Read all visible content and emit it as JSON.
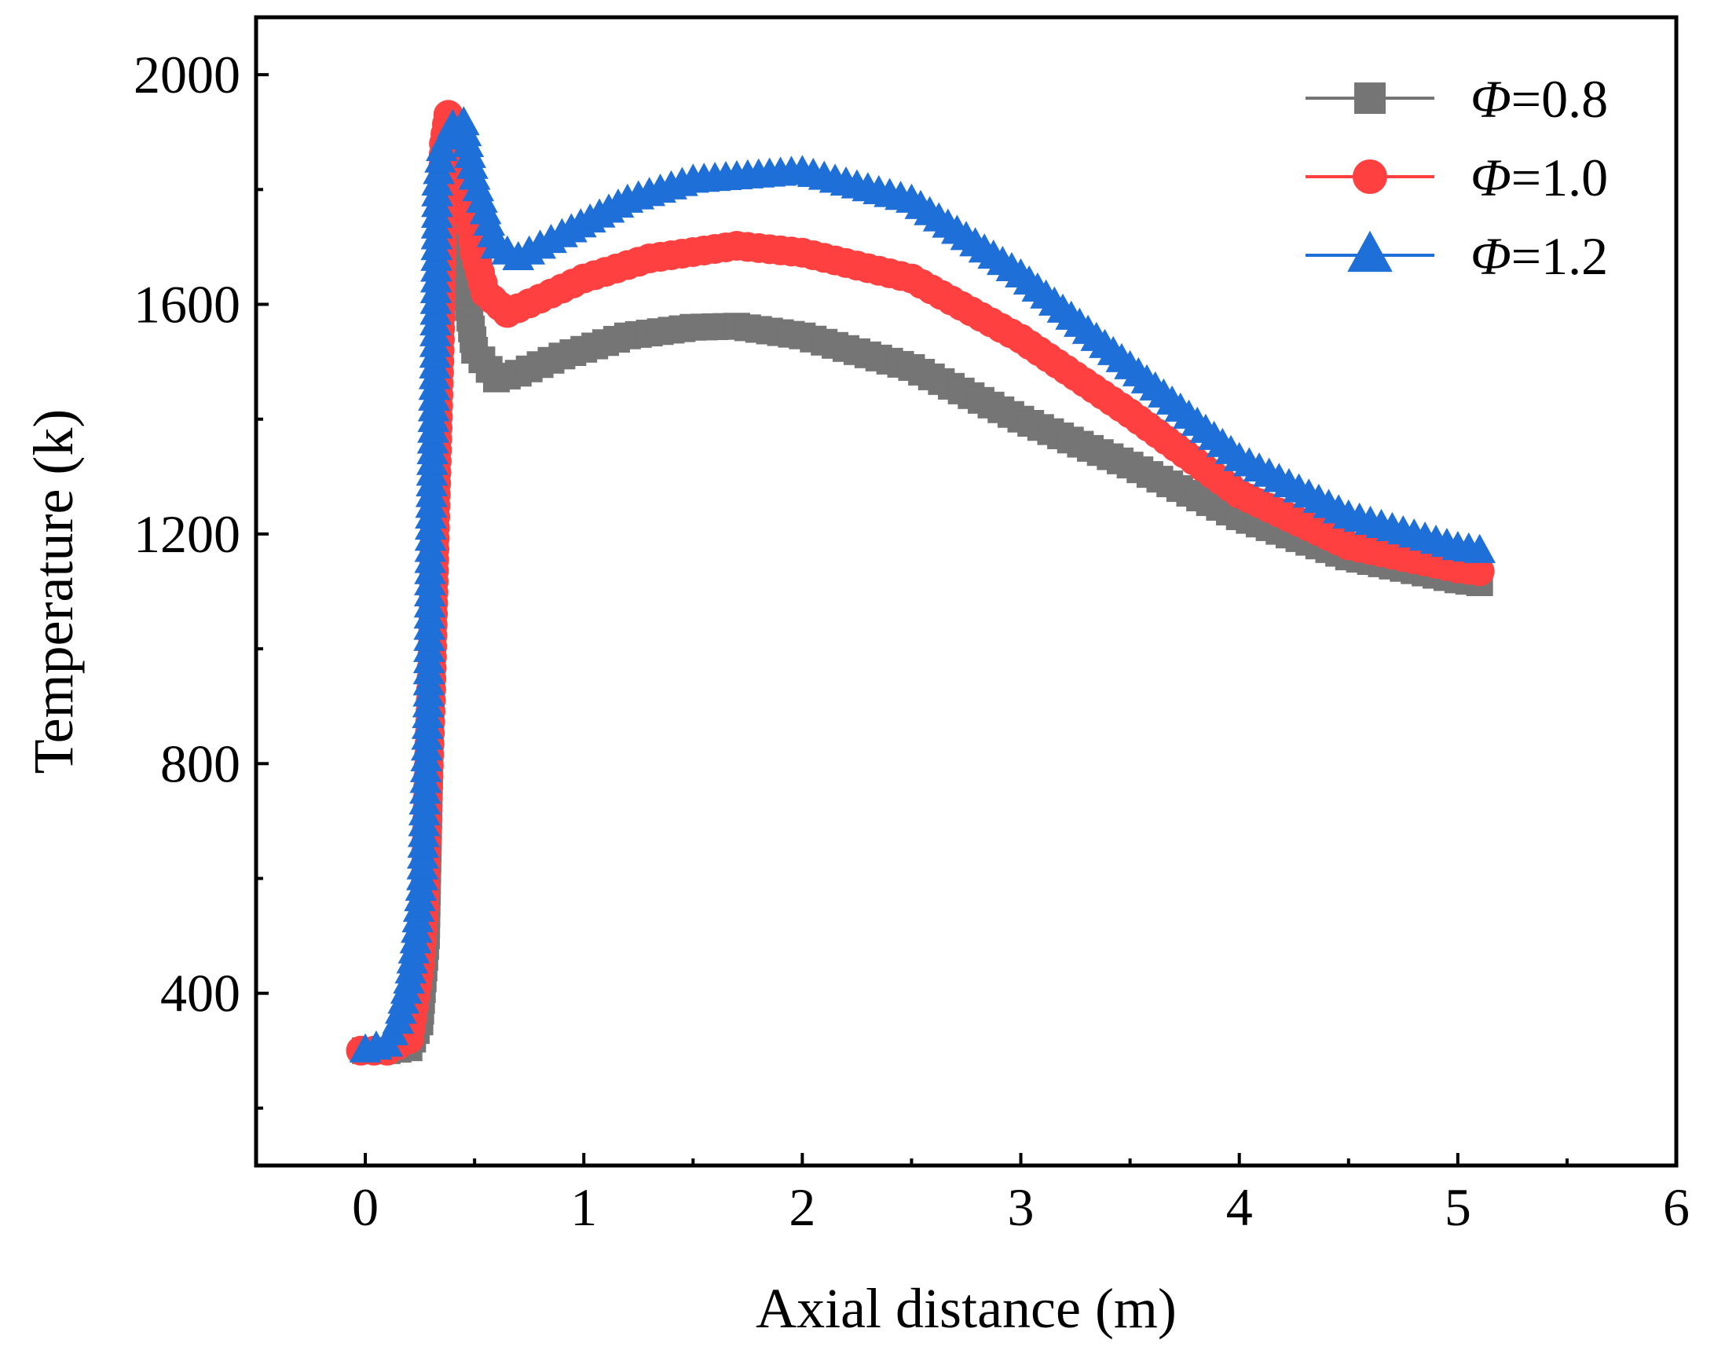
{
  "chart_data": {
    "type": "scatter",
    "title": "",
    "xlabel": "Axial distance (m)",
    "ylabel": "Temperature (k)",
    "xlim": [
      -0.5,
      6.0
    ],
    "ylim": [
      100,
      2100
    ],
    "xticks": [
      0,
      1,
      2,
      3,
      4,
      5,
      6
    ],
    "yticks": [
      400,
      800,
      1200,
      1600,
      2000
    ],
    "grid": false,
    "legend_position": "top-right",
    "series": [
      {
        "name": "Φ=0.8",
        "label_symbol": "Φ",
        "label_value": "=0.8",
        "marker": "square",
        "color": "#757575",
        "points": [
          [
            0.0,
            300
          ],
          [
            0.1,
            300
          ],
          [
            0.2,
            305
          ],
          [
            0.25,
            350
          ],
          [
            0.28,
            500
          ],
          [
            0.3,
            900
          ],
          [
            0.32,
            1220
          ],
          [
            0.34,
            1520
          ],
          [
            0.37,
            1780
          ],
          [
            0.4,
            1730
          ],
          [
            0.45,
            1650
          ],
          [
            0.5,
            1520
          ],
          [
            0.6,
            1470
          ],
          [
            0.7,
            1480
          ],
          [
            0.9,
            1510
          ],
          [
            1.2,
            1545
          ],
          [
            1.5,
            1560
          ],
          [
            1.7,
            1562
          ],
          [
            2.0,
            1545
          ],
          [
            2.5,
            1490
          ],
          [
            3.0,
            1400
          ],
          [
            3.5,
            1320
          ],
          [
            4.0,
            1230
          ],
          [
            4.5,
            1160
          ],
          [
            5.0,
            1120
          ],
          [
            5.1,
            1115
          ]
        ]
      },
      {
        "name": "Φ=1.0",
        "label_symbol": "Φ",
        "label_value": "=1.0",
        "marker": "circle",
        "color": "#ff4040",
        "points": [
          [
            -0.02,
            300
          ],
          [
            0.1,
            300
          ],
          [
            0.2,
            320
          ],
          [
            0.25,
            450
          ],
          [
            0.27,
            550
          ],
          [
            0.3,
            910
          ],
          [
            0.32,
            1230
          ],
          [
            0.34,
            1520
          ],
          [
            0.36,
            1880
          ],
          [
            0.38,
            1930
          ],
          [
            0.42,
            1850
          ],
          [
            0.47,
            1790
          ],
          [
            0.5,
            1690
          ],
          [
            0.55,
            1620
          ],
          [
            0.65,
            1585
          ],
          [
            0.8,
            1610
          ],
          [
            1.0,
            1645
          ],
          [
            1.3,
            1680
          ],
          [
            1.7,
            1702
          ],
          [
            2.0,
            1690
          ],
          [
            2.5,
            1645
          ],
          [
            3.0,
            1540
          ],
          [
            3.5,
            1410
          ],
          [
            4.0,
            1270
          ],
          [
            4.5,
            1180
          ],
          [
            5.0,
            1140
          ],
          [
            5.1,
            1135
          ]
        ]
      },
      {
        "name": "Φ=1.2",
        "label_symbol": "Φ",
        "label_value": "=1.2",
        "marker": "triangle",
        "color": "#1f6fd9",
        "points": [
          [
            0.0,
            300
          ],
          [
            0.1,
            310
          ],
          [
            0.15,
            350
          ],
          [
            0.2,
            420
          ],
          [
            0.23,
            490
          ],
          [
            0.26,
            600
          ],
          [
            0.29,
            920
          ],
          [
            0.3,
            1230
          ],
          [
            0.32,
            1510
          ],
          [
            0.33,
            1810
          ],
          [
            0.35,
            1870
          ],
          [
            0.4,
            1910
          ],
          [
            0.45,
            1915
          ],
          [
            0.5,
            1820
          ],
          [
            0.55,
            1760
          ],
          [
            0.6,
            1700
          ],
          [
            0.7,
            1680
          ],
          [
            0.9,
            1720
          ],
          [
            1.2,
            1780
          ],
          [
            1.5,
            1815
          ],
          [
            2.0,
            1830
          ],
          [
            2.5,
            1780
          ],
          [
            3.0,
            1650
          ],
          [
            3.5,
            1490
          ],
          [
            4.0,
            1330
          ],
          [
            4.5,
            1230
          ],
          [
            5.0,
            1175
          ],
          [
            5.1,
            1170
          ]
        ]
      }
    ]
  }
}
